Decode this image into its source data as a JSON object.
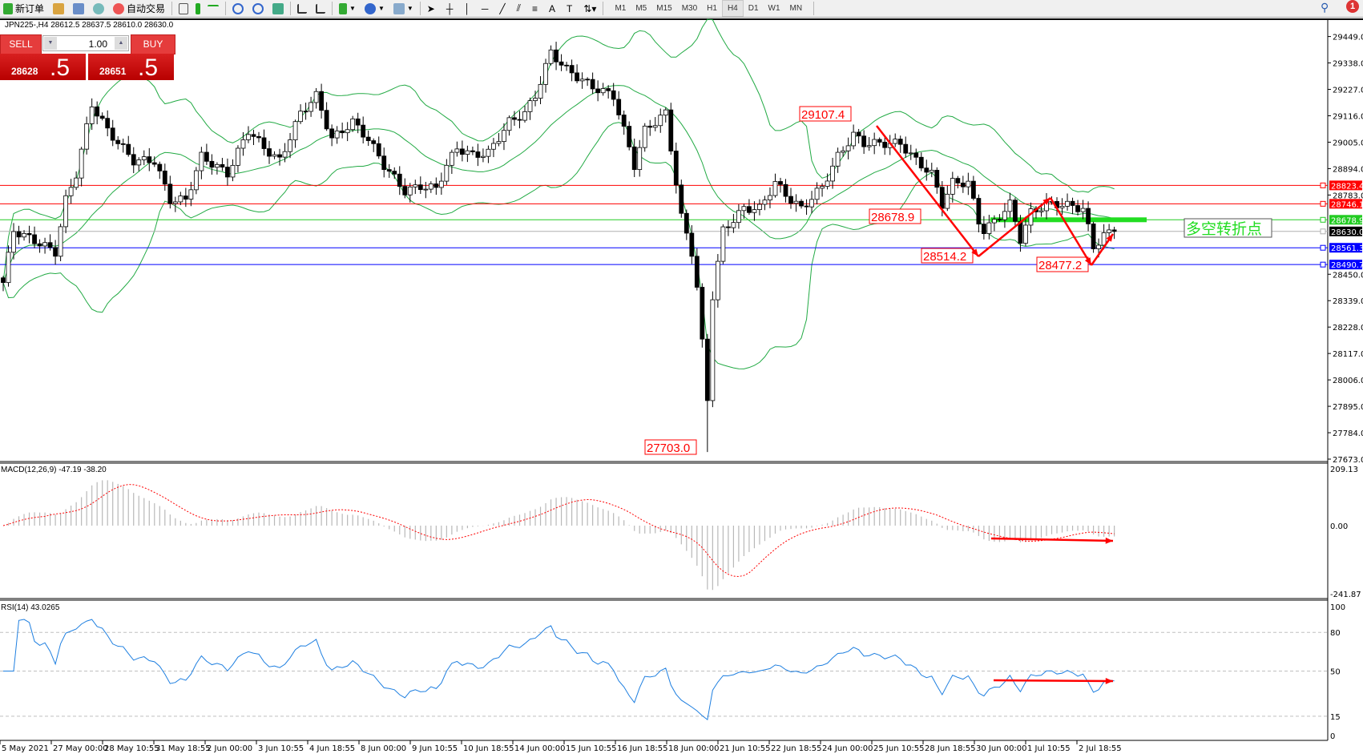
{
  "toolbar": {
    "new_order": "新订单",
    "auto_trading": "自动交易",
    "draw_tools": [
      "A",
      "T"
    ],
    "timeframes": [
      "M1",
      "M5",
      "M15",
      "M30",
      "H1",
      "H4",
      "D1",
      "W1",
      "MN"
    ],
    "active_timeframe": "H4",
    "notification_count": "1"
  },
  "chart_header": "JPN225-,H4  28612.5 28637.5 28610.0 28630.0",
  "trade_panel": {
    "sell_label": "SELL",
    "buy_label": "BUY",
    "lot": "1.00",
    "sell_price_main": "28628",
    "sell_price_big": ".5",
    "buy_price_main": "28651",
    "buy_price_big": ".5"
  },
  "chart_data": {
    "type": "candlestick",
    "symbol": "JPN225-",
    "timeframe": "H4",
    "price_axis_ticks": [
      "29449.0",
      "29338.0",
      "29227.0",
      "29116.0",
      "29005.0",
      "28894.0",
      "28783.0",
      "28450.0",
      "28339.0",
      "28228.0",
      "28117.0",
      "28006.0",
      "27895.0",
      "27784.0",
      "27673.0"
    ],
    "ylim": [
      27673.0,
      29449.0
    ],
    "close_path": [
      [
        0,
        28415
      ],
      [
        2,
        28634
      ],
      [
        7,
        28580
      ],
      [
        10,
        28543
      ],
      [
        12,
        28762
      ],
      [
        14,
        28872
      ],
      [
        17,
        29164
      ],
      [
        20,
        29055
      ],
      [
        25,
        28927
      ],
      [
        29,
        28927
      ],
      [
        32,
        28762
      ],
      [
        35,
        28762
      ],
      [
        38,
        28945
      ],
      [
        43,
        28872
      ],
      [
        47,
        29055
      ],
      [
        50,
        28981
      ],
      [
        53,
        28927
      ],
      [
        57,
        29127
      ],
      [
        60,
        29200
      ],
      [
        63,
        29018
      ],
      [
        67,
        29090
      ],
      [
        70,
        29018
      ],
      [
        73,
        28908
      ],
      [
        77,
        28799
      ],
      [
        80,
        28820
      ],
      [
        83,
        28810
      ],
      [
        85,
        28908
      ],
      [
        87,
        28981
      ],
      [
        90,
        28950
      ],
      [
        93,
        28960
      ],
      [
        97,
        29090
      ],
      [
        100,
        29127
      ],
      [
        102,
        29200
      ],
      [
        105,
        29383
      ],
      [
        108,
        29310
      ],
      [
        113,
        29237
      ],
      [
        117,
        29200
      ],
      [
        119,
        29055
      ],
      [
        121,
        28908
      ],
      [
        123,
        29055
      ],
      [
        127,
        29127
      ],
      [
        128,
        28981
      ],
      [
        130,
        28690
      ],
      [
        132,
        28543
      ],
      [
        133,
        28397
      ],
      [
        135,
        27922
      ],
      [
        136,
        28360
      ],
      [
        138,
        28634
      ],
      [
        142,
        28726
      ],
      [
        145,
        28726
      ],
      [
        148,
        28835
      ],
      [
        151,
        28762
      ],
      [
        153,
        28726
      ],
      [
        157,
        28817
      ],
      [
        160,
        28945
      ],
      [
        163,
        29036
      ],
      [
        165,
        29000
      ],
      [
        168,
        29000
      ],
      [
        172,
        29000
      ],
      [
        175,
        28927
      ],
      [
        178,
        28872
      ],
      [
        180,
        28744
      ],
      [
        182,
        28835
      ],
      [
        185,
        28835
      ],
      [
        187,
        28671
      ],
      [
        188,
        28634
      ],
      [
        190,
        28671
      ],
      [
        193,
        28744
      ],
      [
        195,
        28598
      ],
      [
        197,
        28708
      ],
      [
        200,
        28744
      ],
      [
        203,
        28744
      ],
      [
        207,
        28726
      ],
      [
        209,
        28562
      ],
      [
        211,
        28615
      ],
      [
        213,
        28630
      ]
    ],
    "low_extreme": 27703.0,
    "current_price": 28630.0,
    "horizontal_lines": [
      {
        "price": "28823.4",
        "color": "#ff0000"
      },
      {
        "price": "28746.1",
        "color": "#ff0000"
      },
      {
        "price": "28678.9",
        "color": "#22cc22"
      },
      {
        "price": "28630.0",
        "color": "#000000"
      },
      {
        "price": "28561.3",
        "color": "#0000ff"
      },
      {
        "price": "28490.7",
        "color": "#0000ff"
      }
    ],
    "annotations": [
      "29107.4",
      "28678.9",
      "28514.2",
      "28477.2",
      "27703.0"
    ],
    "turning_point_label": "多空转折点",
    "bollinger": {
      "period": 20,
      "deviation": 2,
      "color": "#22aa44"
    },
    "time_labels": [
      "5 May 2021",
      "27 May 00:00",
      "28 May 10:55",
      "31 May 18:55",
      "2 Jun 00:00",
      "3 Jun 10:55",
      "4 Jun 18:55",
      "8 Jun 00:00",
      "9 Jun 10:55",
      "10 Jun 18:55",
      "14 Jun 00:00",
      "15 Jun 10:55",
      "16 Jun 18:55",
      "18 Jun 00:00",
      "21 Jun 10:55",
      "22 Jun 18:55",
      "24 Jun 00:00",
      "25 Jun 10:55",
      "28 Jun 18:55",
      "30 Jun 00:00",
      "1 Jul 10:55",
      "2 Jul 18:55"
    ]
  },
  "macd": {
    "label": "MACD(12,26,9) -47.19 -38.20",
    "ticks": [
      "209.13",
      "0.00",
      "-241.87"
    ],
    "ylim": [
      -241.87,
      209.13
    ]
  },
  "rsi": {
    "label": "RSI(14) 43.0265",
    "ticks": [
      "100",
      "80",
      "50",
      "15",
      "0"
    ],
    "levels": [
      80,
      50,
      15
    ]
  }
}
